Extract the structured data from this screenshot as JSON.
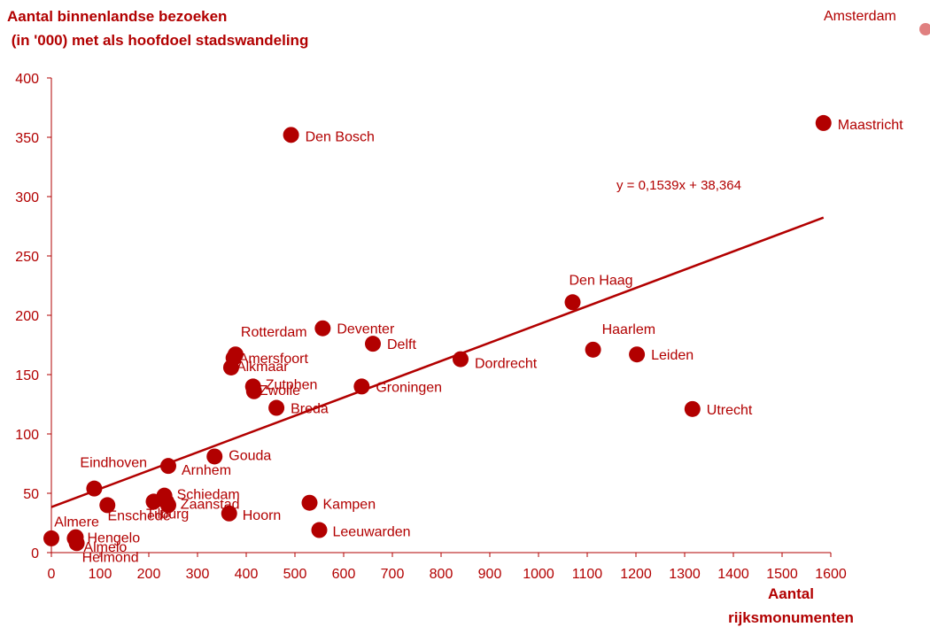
{
  "chart_data": {
    "type": "scatter",
    "ylabel_lines": [
      "Aantal binnenlandse bezoeken",
      " (in '000) met als hoofdoel stadswandeling"
    ],
    "xlabel_lines": [
      "Aantal",
      "rijksmonumenten"
    ],
    "xlim": [
      0,
      1600
    ],
    "ylim": [
      0,
      400
    ],
    "x_ticks": [
      0,
      100,
      200,
      300,
      400,
      500,
      600,
      700,
      800,
      900,
      1000,
      1100,
      1200,
      1300,
      1400,
      1500,
      1600
    ],
    "y_ticks": [
      0,
      50,
      100,
      150,
      200,
      250,
      300,
      350,
      400
    ],
    "trendline": {
      "equation": "y = 0,1539x + 38,364",
      "slope": 0.1539,
      "intercept": 38.364,
      "x_range": [
        0,
        1585
      ]
    },
    "points": [
      {
        "name": "Maastricht",
        "x": 1585,
        "y": 362
      },
      {
        "name": "Den Bosch",
        "x": 492,
        "y": 352
      },
      {
        "name": "Den Haag",
        "x": 1070,
        "y": 211
      },
      {
        "name": "Haarlem",
        "x": 1112,
        "y": 171
      },
      {
        "name": "Leiden",
        "x": 1202,
        "y": 167
      },
      {
        "name": "Utrecht",
        "x": 1316,
        "y": 121
      },
      {
        "name": "Deventer",
        "x": 557,
        "y": 189
      },
      {
        "name": "Delft",
        "x": 660,
        "y": 176
      },
      {
        "name": "Dordrecht",
        "x": 840,
        "y": 163
      },
      {
        "name": "Groningen",
        "x": 637,
        "y": 140
      },
      {
        "name": "Rotterdam",
        "x": 378,
        "y": 167
      },
      {
        "name": "Amersfoort",
        "x": 374,
        "y": 164
      },
      {
        "name": "Alkmaar",
        "x": 369,
        "y": 156
      },
      {
        "name": "Zutphen",
        "x": 414,
        "y": 140
      },
      {
        "name": "Zwolle",
        "x": 416,
        "y": 136
      },
      {
        "name": "Breda",
        "x": 462,
        "y": 122
      },
      {
        "name": "Gouda",
        "x": 335,
        "y": 81
      },
      {
        "name": "Arnhem",
        "x": 240,
        "y": 73
      },
      {
        "name": "Eindhoven",
        "x": 88,
        "y": 54
      },
      {
        "name": "Schiedam",
        "x": 232,
        "y": 48
      },
      {
        "name": "Zaanstad",
        "x": 236,
        "y": 43
      },
      {
        "name": "Enschede",
        "x": 210,
        "y": 43
      },
      {
        "name": "Tilburg",
        "x": 240,
        "y": 40
      },
      {
        "name": "Hoorn",
        "x": 365,
        "y": 33
      },
      {
        "name": "Kampen",
        "x": 530,
        "y": 42
      },
      {
        "name": "Leeuwarden",
        "x": 550,
        "y": 19
      },
      {
        "name": "Almere",
        "x": 115,
        "y": 40
      },
      {
        "name": "Hengelo",
        "x": 50,
        "y": 13
      },
      {
        "name": "Almelo",
        "x": 48,
        "y": 12
      },
      {
        "name": "Helmond",
        "x": 52,
        "y": 8
      },
      {
        "name": "",
        "x": 0,
        "y": 12
      }
    ],
    "outlier": {
      "name": "Amsterdam"
    }
  }
}
